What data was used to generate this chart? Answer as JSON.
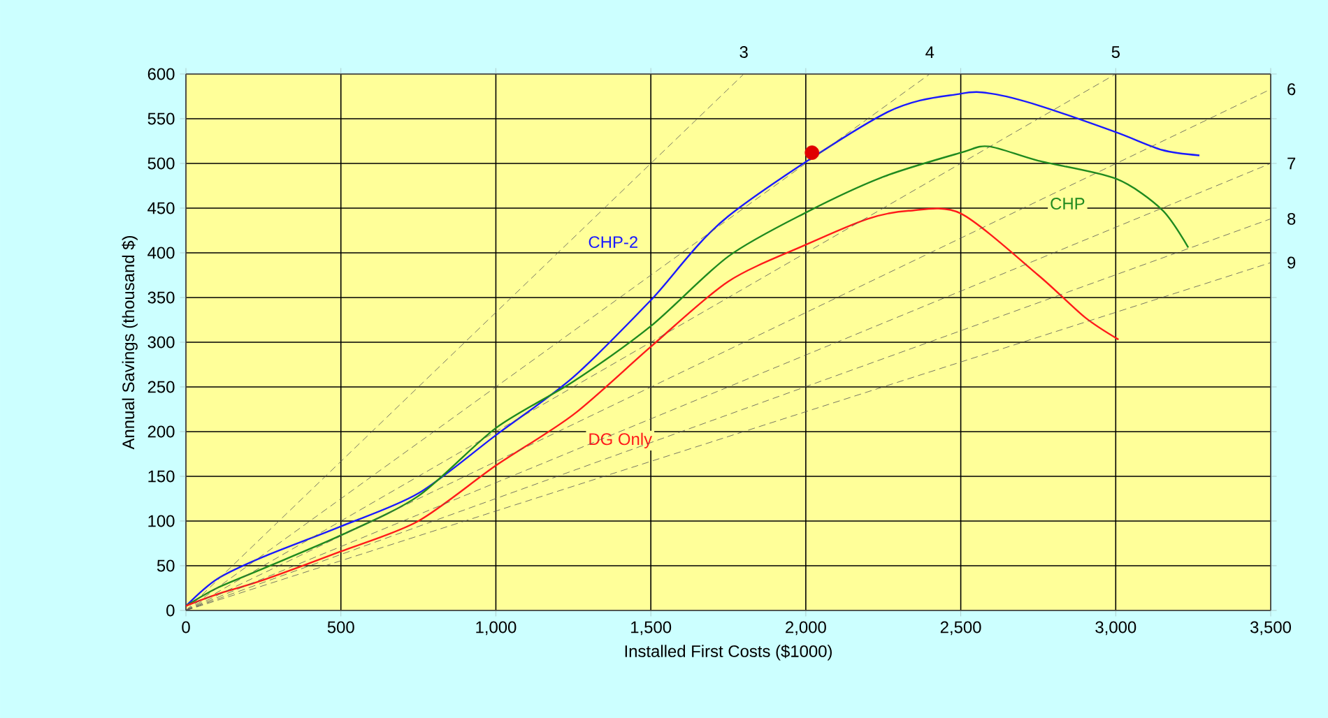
{
  "chart_data": {
    "type": "line",
    "xlabel": "Installed First Costs  ($1000)",
    "ylabel": "Annual Savings (thousand $)",
    "xlim": [
      0,
      3500
    ],
    "ylim": [
      0,
      600
    ],
    "xticks": [
      0,
      500,
      {
        "value": 1000,
        "label": "1,000"
      },
      {
        "value": 1500,
        "label": "1,500"
      },
      {
        "value": 2000,
        "label": "2,000"
      },
      {
        "value": 2500,
        "label": "2,500"
      },
      {
        "value": 3000,
        "label": "3,000"
      },
      {
        "value": 3500,
        "label": "3,500"
      }
    ],
    "yticks": [
      0,
      50,
      100,
      150,
      200,
      250,
      300,
      350,
      400,
      450,
      500,
      550,
      600
    ],
    "grid": true,
    "marker": "none",
    "series": [
      {
        "name": "CHP-2",
        "color": "#1a1aff",
        "x": [
          0,
          100,
          250,
          500,
          750,
          1000,
          1250,
          1500,
          1750,
          2250,
          2500,
          2600,
          2750,
          3000,
          3150,
          3270
        ],
        "values": [
          5,
          35,
          60,
          94,
          131,
          196,
          261,
          347,
          441,
          555,
          578,
          578,
          565,
          535,
          515,
          509
        ]
      },
      {
        "name": "CHP",
        "color": "#1f8a1f",
        "x": [
          0,
          100,
          250,
          500,
          750,
          1000,
          1250,
          1500,
          1750,
          2000,
          2250,
          2500,
          2590,
          2750,
          3000,
          3150,
          3234
        ],
        "values": [
          5,
          25,
          47,
          84,
          128,
          204,
          256,
          318,
          396,
          445,
          485,
          512,
          519,
          503,
          483,
          448,
          406
        ]
      },
      {
        "name": "DG Only",
        "color": "#ff1a1a",
        "x": [
          0,
          100,
          250,
          500,
          750,
          1000,
          1250,
          1500,
          1750,
          2000,
          2200,
          2332,
          2500,
          2750,
          2900,
          3009
        ],
        "values": [
          5,
          18,
          34,
          66,
          100,
          162,
          219,
          295,
          368,
          409,
          438,
          447,
          444,
          375,
          328,
          303
        ]
      },
      {
        "name": "3",
        "color": "#555555",
        "line_style": "dashed",
        "x": [
          0,
          1800
        ],
        "values": [
          0,
          600
        ]
      },
      {
        "name": "4",
        "color": "#555555",
        "line_style": "dashed",
        "x": [
          0,
          2400
        ],
        "values": [
          0,
          600
        ]
      },
      {
        "name": "5",
        "color": "#555555",
        "line_style": "dashed",
        "x": [
          0,
          3000
        ],
        "values": [
          0,
          600
        ]
      },
      {
        "name": "6",
        "color": "#555555",
        "line_style": "dashed",
        "x": [
          0,
          3500
        ],
        "values": [
          0,
          583
        ]
      },
      {
        "name": "7",
        "color": "#555555",
        "line_style": "dashed",
        "x": [
          0,
          3500
        ],
        "values": [
          0,
          500
        ]
      },
      {
        "name": "8",
        "color": "#555555",
        "line_style": "dashed",
        "x": [
          0,
          3500
        ],
        "values": [
          0,
          438
        ]
      },
      {
        "name": "9",
        "color": "#555555",
        "line_style": "dashed",
        "x": [
          0,
          3500
        ],
        "values": [
          0,
          389
        ]
      },
      {
        "type": "scatter",
        "color": "#e00000",
        "marker": "circle",
        "x": [
          2020
        ],
        "values": [
          512
        ]
      }
    ]
  }
}
